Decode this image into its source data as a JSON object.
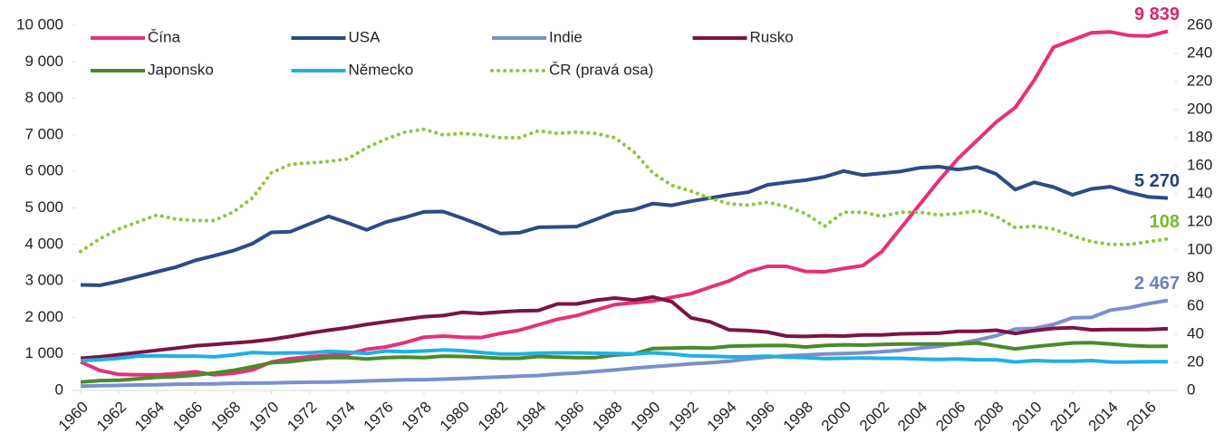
{
  "chart_data": {
    "type": "line",
    "x": [
      1960,
      1961,
      1962,
      1963,
      1964,
      1965,
      1966,
      1967,
      1968,
      1969,
      1970,
      1971,
      1972,
      1973,
      1974,
      1975,
      1976,
      1977,
      1978,
      1979,
      1980,
      1981,
      1982,
      1983,
      1984,
      1985,
      1986,
      1987,
      1988,
      1989,
      1990,
      1991,
      1992,
      1993,
      1994,
      1995,
      1996,
      1997,
      1998,
      1999,
      2000,
      2001,
      2002,
      2003,
      2004,
      2005,
      2006,
      2007,
      2008,
      2009,
      2010,
      2011,
      2012,
      2013,
      2014,
      2015,
      2016,
      2017
    ],
    "xlim": [
      1960,
      2017
    ],
    "xticks": [
      1960,
      1962,
      1964,
      1966,
      1968,
      1970,
      1972,
      1974,
      1976,
      1978,
      1980,
      1982,
      1984,
      1986,
      1988,
      1990,
      1992,
      1994,
      1996,
      1998,
      2000,
      2002,
      2004,
      2006,
      2008,
      2010,
      2012,
      2014,
      2016
    ],
    "ylim": [
      0,
      10000
    ],
    "yticks": [
      0,
      {
        "value": 1000,
        "label": "1 000"
      },
      {
        "value": 2000,
        "label": "2 000"
      },
      {
        "value": 3000,
        "label": "3 000"
      },
      {
        "value": 4000,
        "label": "4 000"
      },
      {
        "value": 5000,
        "label": "5 000"
      },
      {
        "value": 6000,
        "label": "6 000"
      },
      {
        "value": 7000,
        "label": "7 000"
      },
      {
        "value": 8000,
        "label": "8 000"
      },
      {
        "value": 9000,
        "label": "9 000"
      },
      {
        "value": 10000,
        "label": "10 000"
      }
    ],
    "y2lim": [
      0,
      260
    ],
    "y2ticks": [
      0,
      20,
      40,
      60,
      80,
      100,
      120,
      140,
      160,
      180,
      200,
      220,
      240,
      260
    ],
    "legend": "top-left",
    "grid": false,
    "series": [
      {
        "name": "Čína",
        "color": "#e6307b",
        "label_color": "#d9266f",
        "values": [
          780,
          550,
          440,
          430,
          430,
          460,
          510,
          430,
          470,
          560,
          780,
          870,
          920,
          960,
          990,
          1130,
          1190,
          1310,
          1460,
          1490,
          1460,
          1450,
          1560,
          1650,
          1800,
          1950,
          2050,
          2200,
          2350,
          2400,
          2450,
          2550,
          2650,
          2830,
          3000,
          3250,
          3400,
          3400,
          3260,
          3250,
          3340,
          3420,
          3800,
          4450,
          5100,
          5750,
          6350,
          6850,
          7350,
          7750,
          8500,
          9400,
          9600,
          9800,
          9820,
          9720,
          9710,
          9839
        ],
        "value_labels": [
          null,
          null,
          null,
          null,
          null,
          null,
          null,
          null,
          null,
          null,
          null,
          null,
          null,
          null,
          null,
          null,
          null,
          null,
          null,
          null,
          null,
          null,
          null,
          null,
          null,
          null,
          null,
          null,
          null,
          null,
          null,
          null,
          null,
          null,
          null,
          null,
          null,
          null,
          null,
          null,
          null,
          null,
          null,
          null,
          null,
          null,
          null,
          null,
          null,
          null,
          null,
          null,
          null,
          null,
          null,
          null,
          null,
          "9 839"
        ]
      },
      {
        "name": "USA",
        "color": "#2e4a87",
        "label_color": "#1f4378",
        "values": [
          2890,
          2880,
          2990,
          3120,
          3250,
          3380,
          3560,
          3690,
          3830,
          4020,
          4330,
          4350,
          4560,
          4770,
          4590,
          4400,
          4610,
          4740,
          4890,
          4900,
          4720,
          4520,
          4300,
          4320,
          4470,
          4480,
          4490,
          4680,
          4880,
          4950,
          5120,
          5070,
          5180,
          5270,
          5360,
          5430,
          5630,
          5700,
          5760,
          5850,
          6010,
          5900,
          5950,
          6000,
          6100,
          6130,
          6050,
          6120,
          5930,
          5500,
          5700,
          5570,
          5360,
          5520,
          5580,
          5420,
          5300,
          5270
        ],
        "value_labels": [
          null,
          null,
          null,
          null,
          null,
          null,
          null,
          null,
          null,
          null,
          null,
          null,
          null,
          null,
          null,
          null,
          null,
          null,
          null,
          null,
          null,
          null,
          null,
          null,
          null,
          null,
          null,
          null,
          null,
          null,
          null,
          null,
          null,
          null,
          null,
          null,
          null,
          null,
          null,
          null,
          null,
          null,
          null,
          null,
          null,
          null,
          null,
          null,
          null,
          null,
          null,
          null,
          null,
          null,
          null,
          null,
          null,
          "5 270"
        ]
      },
      {
        "name": "Indie",
        "color": "#7b8fcc",
        "label_color": "#6b7fc2",
        "values": [
          120,
          130,
          140,
          150,
          155,
          170,
          175,
          180,
          195,
          200,
          205,
          215,
          225,
          230,
          240,
          260,
          275,
          290,
          295,
          310,
          330,
          350,
          370,
          390,
          410,
          450,
          480,
          520,
          560,
          610,
          650,
          690,
          730,
          760,
          800,
          860,
          910,
          950,
          970,
          1000,
          1010,
          1030,
          1060,
          1100,
          1160,
          1210,
          1280,
          1380,
          1500,
          1680,
          1700,
          1810,
          1990,
          2000,
          2200,
          2270,
          2380,
          2467
        ],
        "value_labels": [
          null,
          null,
          null,
          null,
          null,
          null,
          null,
          null,
          null,
          null,
          null,
          null,
          null,
          null,
          null,
          null,
          null,
          null,
          null,
          null,
          null,
          null,
          null,
          null,
          null,
          null,
          null,
          null,
          null,
          null,
          null,
          null,
          null,
          null,
          null,
          null,
          null,
          null,
          null,
          null,
          null,
          null,
          null,
          null,
          null,
          null,
          null,
          null,
          null,
          null,
          null,
          null,
          null,
          null,
          null,
          null,
          null,
          "2 467"
        ]
      },
      {
        "name": "Rusko",
        "color": "#7b1445",
        "values": [
          880,
          920,
          980,
          1040,
          1100,
          1160,
          1220,
          1260,
          1300,
          1340,
          1400,
          1480,
          1570,
          1650,
          1720,
          1810,
          1880,
          1950,
          2020,
          2050,
          2140,
          2110,
          2150,
          2180,
          2190,
          2370,
          2370,
          2470,
          2530,
          2480,
          2560,
          2430,
          1990,
          1880,
          1660,
          1640,
          1600,
          1490,
          1480,
          1500,
          1490,
          1520,
          1520,
          1550,
          1560,
          1570,
          1620,
          1620,
          1650,
          1560,
          1640,
          1700,
          1720,
          1660,
          1670,
          1670,
          1670,
          1690
        ]
      },
      {
        "name": "Japonsko",
        "color": "#4a8a2a",
        "values": [
          230,
          270,
          280,
          320,
          360,
          380,
          420,
          480,
          550,
          650,
          760,
          790,
          850,
          900,
          900,
          860,
          900,
          910,
          900,
          940,
          930,
          910,
          880,
          880,
          930,
          910,
          900,
          900,
          970,
          1000,
          1150,
          1160,
          1170,
          1160,
          1210,
          1220,
          1230,
          1230,
          1190,
          1230,
          1250,
          1240,
          1260,
          1270,
          1270,
          1270,
          1270,
          1300,
          1220,
          1140,
          1200,
          1250,
          1300,
          1310,
          1270,
          1230,
          1210,
          1210
        ]
      },
      {
        "name": "Německo",
        "color": "#1fb0e6",
        "values": [
          820,
          840,
          880,
          940,
          950,
          940,
          940,
          920,
          970,
          1040,
          1020,
          1030,
          1030,
          1070,
          1050,
          1010,
          1080,
          1060,
          1080,
          1110,
          1090,
          1040,
          1000,
          1000,
          1020,
          1030,
          1030,
          1020,
          1010,
          1000,
          1030,
          1000,
          950,
          940,
          920,
          920,
          940,
          910,
          900,
          870,
          880,
          890,
          880,
          880,
          860,
          850,
          860,
          840,
          840,
          780,
          820,
          800,
          800,
          820,
          780,
          780,
          790,
          790
        ]
      },
      {
        "name": "ČR (pravá osa)",
        "color": "#8cc63f",
        "label_color": "#7ab82f",
        "style": "dotted",
        "axis": "y2",
        "values": [
          99,
          108,
          115,
          120,
          125,
          122,
          121,
          121,
          127,
          137,
          155,
          161,
          162,
          163,
          165,
          173,
          179,
          184,
          186,
          182,
          183,
          182,
          180,
          180,
          185,
          183,
          184,
          183,
          180,
          170,
          155,
          146,
          142,
          137,
          133,
          132,
          134,
          131,
          126,
          117,
          127,
          127,
          124,
          127,
          127,
          125,
          126,
          128,
          124,
          116,
          117,
          115,
          110,
          106,
          104,
          104,
          106,
          108
        ],
        "value_labels": [
          null,
          null,
          null,
          null,
          null,
          null,
          null,
          null,
          null,
          null,
          null,
          null,
          null,
          null,
          null,
          null,
          null,
          null,
          null,
          null,
          null,
          null,
          null,
          null,
          null,
          null,
          null,
          null,
          null,
          null,
          null,
          null,
          null,
          null,
          null,
          null,
          null,
          null,
          null,
          null,
          null,
          null,
          null,
          null,
          null,
          null,
          null,
          null,
          null,
          null,
          null,
          null,
          null,
          null,
          null,
          null,
          null,
          "108"
        ]
      }
    ]
  }
}
